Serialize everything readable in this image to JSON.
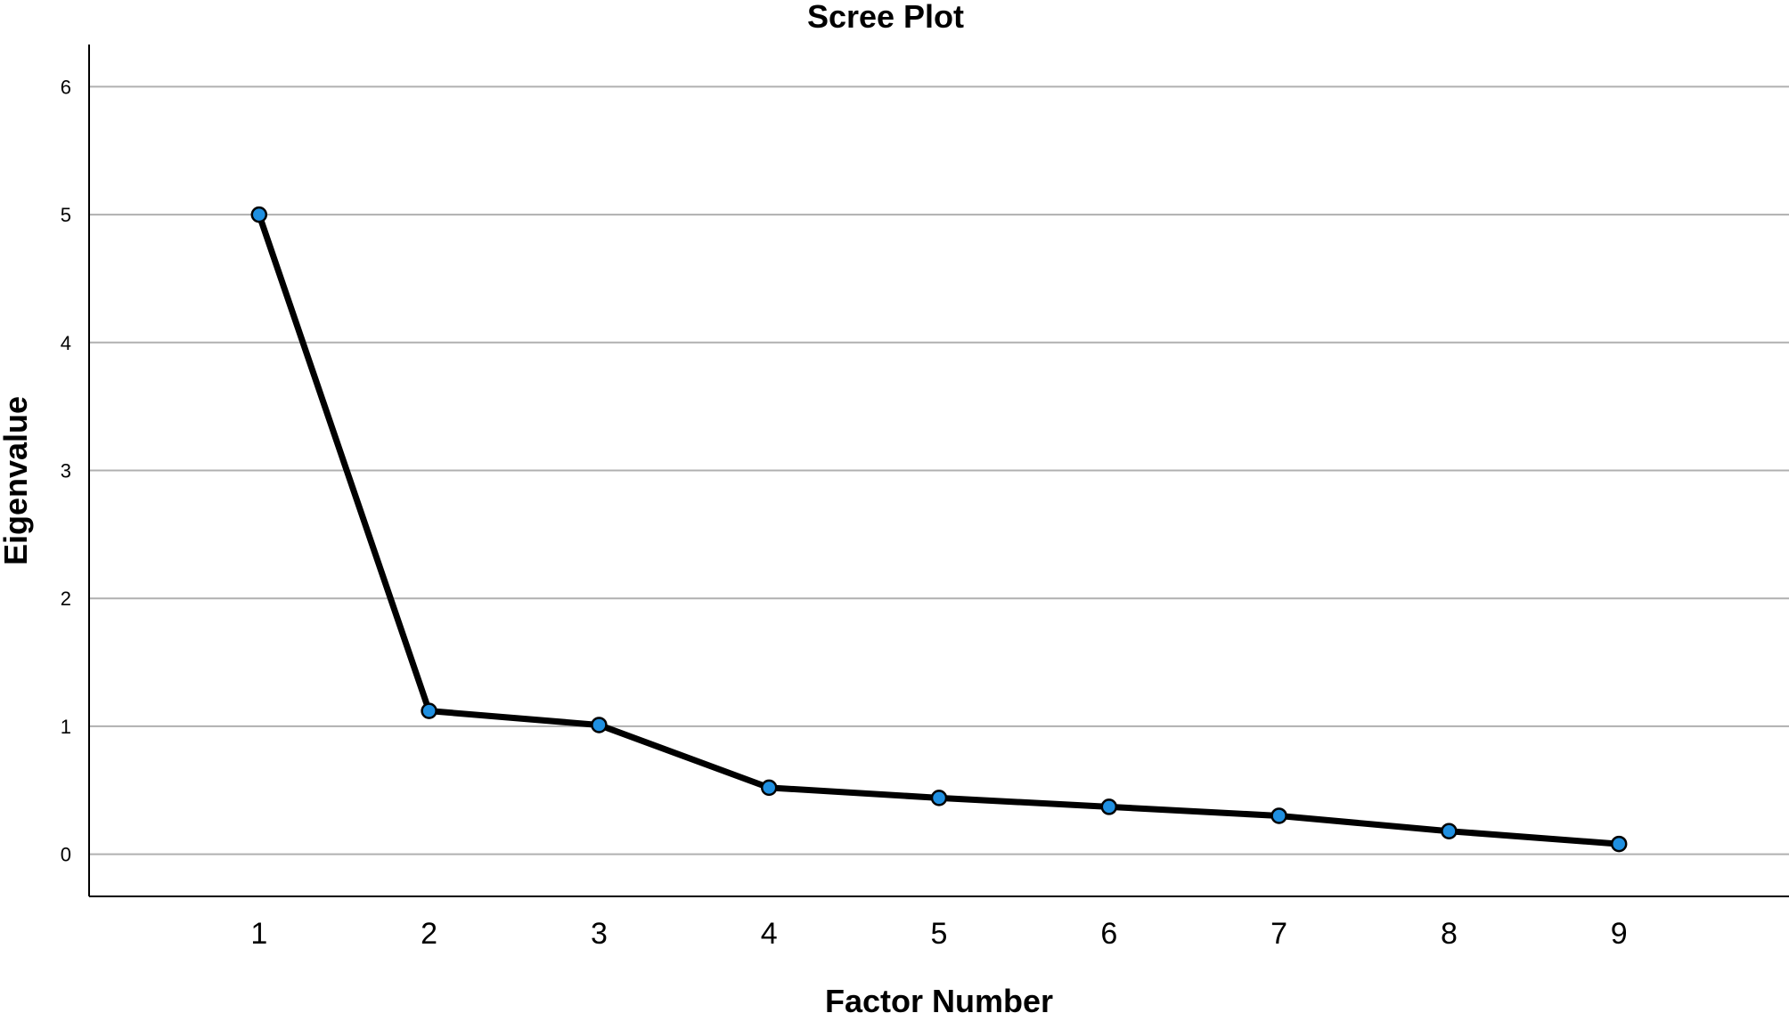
{
  "chart_data": {
    "type": "line",
    "title": "Scree Plot",
    "xlabel": "Factor Number",
    "ylabel": "Eigenvalue",
    "categories": [
      "1",
      "2",
      "3",
      "4",
      "5",
      "6",
      "7",
      "8",
      "9"
    ],
    "x": [
      1,
      2,
      3,
      4,
      5,
      6,
      7,
      8,
      9
    ],
    "values": [
      5.0,
      1.12,
      1.01,
      0.52,
      0.44,
      0.37,
      0.3,
      0.18,
      0.08
    ],
    "yticks": [
      "0",
      "1",
      "2",
      "3",
      "4",
      "5",
      "6"
    ],
    "ylim": [
      -0.33,
      6.33
    ],
    "xlim": [
      0,
      10
    ],
    "grid": "horizontal",
    "legend": "none",
    "colors": {
      "line": "#000000",
      "marker_fill": "#1f8fe0",
      "marker_stroke": "#000000",
      "gridline": "#b0b0b0",
      "axis": "#000000"
    }
  }
}
